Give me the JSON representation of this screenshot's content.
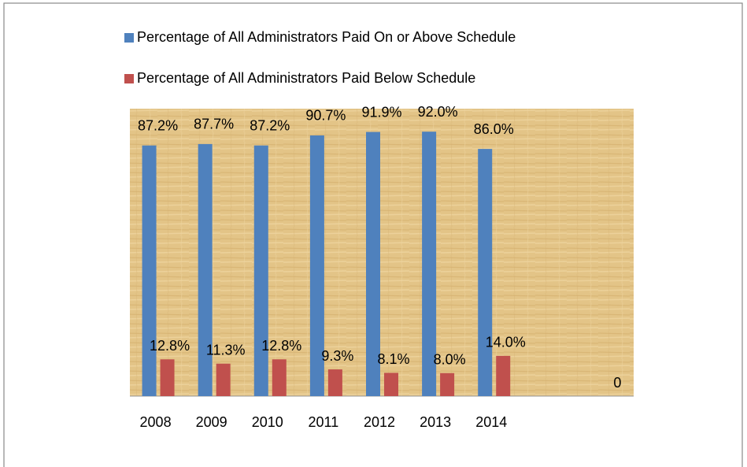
{
  "chart_data": {
    "type": "bar",
    "categories": [
      "2008",
      "2009",
      "2010",
      "2011",
      "2012",
      "2013",
      "2014",
      null,
      null
    ],
    "series": [
      {
        "name": "Percentage of All Administrators Paid On or Above Schedule",
        "color": "#4f81bd",
        "values": [
          87.2,
          87.7,
          87.2,
          90.7,
          91.9,
          92.0,
          86.0,
          null,
          null
        ],
        "value_labels": [
          "87.2%",
          "87.7%",
          "87.2%",
          "90.7%",
          "91.9%",
          "92.0%",
          "86.0%",
          null,
          null
        ]
      },
      {
        "name": "Percentage of All Administrators Paid Below Schedule",
        "color": "#c0504d",
        "values": [
          12.8,
          11.3,
          12.8,
          9.3,
          8.1,
          8.0,
          14.0,
          null,
          0
        ],
        "value_labels": [
          "12.8%",
          "11.3%",
          "12.8%",
          "9.3%",
          "8.1%",
          "8.0%",
          "14.0%",
          null,
          "0"
        ]
      }
    ],
    "ylim": [
      0,
      100
    ]
  }
}
